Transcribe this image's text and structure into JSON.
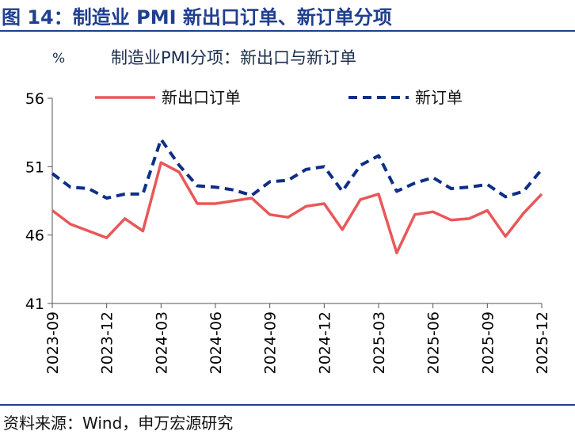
{
  "header": {
    "title": "图 14：制造业 PMI 新出口订单、新订单分项"
  },
  "footer": {
    "source": "资料来源：Wind，申万宏源研究"
  },
  "chart_data": {
    "type": "line",
    "title": "制造业PMI分项：新出口与新订单",
    "unit": "%",
    "ylim": [
      41,
      56
    ],
    "yticks": [
      41,
      46,
      51,
      56
    ],
    "x": [
      "2023-09",
      "2023-10",
      "2023-11",
      "2023-12",
      "2024-01",
      "2024-02",
      "2024-03",
      "2024-04",
      "2024-05",
      "2024-06",
      "2024-07",
      "2024-08",
      "2024-09",
      "2024-10",
      "2024-11",
      "2024-12",
      "2025-01",
      "2025-02",
      "2025-03",
      "2025-04",
      "2025-05",
      "2025-06",
      "2025-07",
      "2025-08",
      "2025-09",
      "2025-10",
      "2025-11",
      "2025-12"
    ],
    "xtick_labels": [
      "2023-09",
      "2023-12",
      "2024-03",
      "2024-06",
      "2024-09",
      "2024-12",
      "2025-03",
      "2025-06",
      "2025-09",
      "2025-12"
    ],
    "legend_position": "top",
    "grid": false,
    "series": [
      {
        "name": "新出口订单",
        "color": "#e8585a",
        "style": "solid",
        "values": [
          47.8,
          46.8,
          46.3,
          45.8,
          47.2,
          46.3,
          51.3,
          50.6,
          48.3,
          48.3,
          48.5,
          48.7,
          47.5,
          47.3,
          48.1,
          48.3,
          46.4,
          48.6,
          49.0,
          44.7,
          47.5,
          47.7,
          47.1,
          47.2,
          47.8,
          45.9,
          47.6,
          49.0
        ]
      },
      {
        "name": "新订单",
        "color": "#0f2f86",
        "style": "dashed",
        "values": [
          50.5,
          49.5,
          49.4,
          48.7,
          49.0,
          49.0,
          53.0,
          51.1,
          49.6,
          49.5,
          49.3,
          48.9,
          49.9,
          50.0,
          50.8,
          51.0,
          49.2,
          51.1,
          51.8,
          49.2,
          49.8,
          50.2,
          49.4,
          49.5,
          49.7,
          48.8,
          49.2,
          50.8
        ]
      }
    ]
  }
}
